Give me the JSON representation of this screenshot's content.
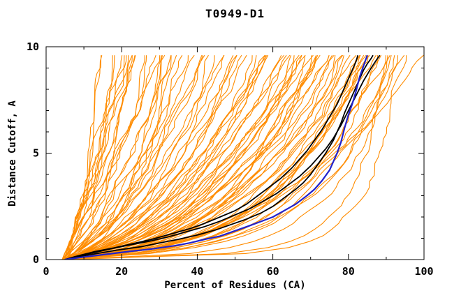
{
  "page": {
    "background": "#ffffff"
  },
  "chart_data": {
    "type": "line",
    "title": "T0949-D1",
    "xlabel": "Percent of Residues (CA)",
    "ylabel": "Distance Cutoff, A",
    "xlim": [
      0,
      100
    ],
    "ylim": [
      0,
      10
    ],
    "x_major_ticks": [
      0,
      20,
      40,
      60,
      80,
      100
    ],
    "x_minor_ticks": [
      10,
      30,
      50,
      70,
      90
    ],
    "y_major_ticks": [
      0,
      5,
      10
    ],
    "y_minor_ticks": [
      1,
      2,
      3,
      4,
      6,
      7,
      8,
      9
    ],
    "grid": false,
    "legend": "none",
    "axis_color": "#000000",
    "colors": {
      "models": "#FF8C00",
      "highlight": "#000000",
      "reference": "#2222CC"
    },
    "y_max_data": 9.6,
    "series": [
      {
        "name": "black-model-1",
        "color": "#000000",
        "width": 1.8,
        "points": [
          [
            5,
            0
          ],
          [
            9,
            0.15
          ],
          [
            14,
            0.3
          ],
          [
            19,
            0.45
          ],
          [
            25,
            0.6
          ],
          [
            30,
            0.78
          ],
          [
            35,
            0.95
          ],
          [
            40,
            1.15
          ],
          [
            45,
            1.4
          ],
          [
            49,
            1.65
          ],
          [
            53,
            1.9
          ],
          [
            57,
            2.2
          ],
          [
            60,
            2.5
          ],
          [
            63,
            2.9
          ],
          [
            66,
            3.3
          ],
          [
            68,
            3.6
          ],
          [
            70,
            4.0
          ],
          [
            72,
            4.5
          ],
          [
            74,
            5.0
          ],
          [
            76,
            5.6
          ],
          [
            77,
            6.0
          ],
          [
            78,
            6.4
          ],
          [
            79,
            6.9
          ],
          [
            80,
            7.3
          ],
          [
            81,
            7.7
          ],
          [
            82,
            8.1
          ],
          [
            83,
            8.5
          ],
          [
            84,
            8.9
          ],
          [
            85,
            9.2
          ],
          [
            86,
            9.45
          ],
          [
            86.5,
            9.6
          ]
        ]
      },
      {
        "name": "black-model-2",
        "color": "#000000",
        "width": 1.8,
        "points": [
          [
            5,
            0
          ],
          [
            8,
            0.15
          ],
          [
            12,
            0.3
          ],
          [
            17,
            0.5
          ],
          [
            22,
            0.68
          ],
          [
            27,
            0.85
          ],
          [
            32,
            1.05
          ],
          [
            37,
            1.3
          ],
          [
            42,
            1.55
          ],
          [
            46,
            1.8
          ],
          [
            50,
            2.1
          ],
          [
            54,
            2.4
          ],
          [
            58,
            2.8
          ],
          [
            61,
            3.1
          ],
          [
            64,
            3.5
          ],
          [
            67,
            3.9
          ],
          [
            70,
            4.4
          ],
          [
            72,
            4.8
          ],
          [
            74,
            5.2
          ],
          [
            76,
            5.7
          ],
          [
            78,
            6.3
          ],
          [
            80,
            7.0
          ],
          [
            82,
            7.7
          ],
          [
            84,
            8.4
          ],
          [
            86,
            9.0
          ],
          [
            87.5,
            9.4
          ],
          [
            88.3,
            9.6
          ]
        ]
      },
      {
        "name": "black-model-3",
        "color": "#000000",
        "width": 1.8,
        "points": [
          [
            5,
            0
          ],
          [
            9,
            0.2
          ],
          [
            13,
            0.38
          ],
          [
            18,
            0.55
          ],
          [
            23,
            0.75
          ],
          [
            28,
            0.95
          ],
          [
            33,
            1.2
          ],
          [
            38,
            1.45
          ],
          [
            42,
            1.7
          ],
          [
            46,
            2.0
          ],
          [
            50,
            2.3
          ],
          [
            53,
            2.6
          ],
          [
            56,
            3.0
          ],
          [
            59,
            3.4
          ],
          [
            62,
            3.8
          ],
          [
            65,
            4.3
          ],
          [
            67,
            4.7
          ],
          [
            69,
            5.1
          ],
          [
            71,
            5.6
          ],
          [
            73,
            6.1
          ],
          [
            75,
            6.7
          ],
          [
            77,
            7.3
          ],
          [
            78,
            7.7
          ],
          [
            79,
            8.1
          ],
          [
            80,
            8.5
          ],
          [
            81,
            8.9
          ],
          [
            82,
            9.3
          ],
          [
            82.5,
            9.6
          ]
        ]
      },
      {
        "name": "blue-reference-model",
        "color": "#2222CC",
        "width": 2.2,
        "points": [
          [
            5,
            0
          ],
          [
            10,
            0.12
          ],
          [
            16,
            0.25
          ],
          [
            22,
            0.38
          ],
          [
            28,
            0.5
          ],
          [
            34,
            0.65
          ],
          [
            38,
            0.78
          ],
          [
            42,
            0.95
          ],
          [
            46,
            1.1
          ],
          [
            50,
            1.35
          ],
          [
            54,
            1.6
          ],
          [
            57,
            1.8
          ],
          [
            60,
            2.0
          ],
          [
            63,
            2.3
          ],
          [
            66,
            2.6
          ],
          [
            69,
            3.0
          ],
          [
            71,
            3.3
          ],
          [
            73,
            3.7
          ],
          [
            75,
            4.2
          ],
          [
            76,
            4.6
          ],
          [
            77,
            5.0
          ],
          [
            78,
            5.5
          ],
          [
            79,
            6.2
          ],
          [
            80,
            6.8
          ],
          [
            81,
            7.3
          ],
          [
            82,
            7.9
          ],
          [
            83,
            8.6
          ],
          [
            84,
            9.1
          ],
          [
            85,
            9.6
          ]
        ]
      }
    ],
    "model_ensemble": {
      "name": "orange-models",
      "color": "#FF8C00",
      "width": 1.1,
      "start_percent_range": [
        4.2,
        5.8
      ],
      "curve_params_legend": [
        "end_percent",
        "shape_exponent",
        "jitter_seed"
      ],
      "curves": [
        [
          17,
          0.8,
          1
        ],
        [
          18,
          0.72,
          2
        ],
        [
          19,
          0.78,
          3
        ],
        [
          20,
          0.7,
          4
        ],
        [
          21,
          0.75,
          5
        ],
        [
          22,
          0.68,
          6
        ],
        [
          23,
          0.74,
          7
        ],
        [
          24,
          0.66,
          8
        ],
        [
          18.5,
          0.82,
          9
        ],
        [
          20.5,
          0.77,
          10
        ],
        [
          16.5,
          0.7,
          11
        ],
        [
          25,
          0.72,
          12
        ],
        [
          26,
          0.6,
          13
        ],
        [
          28,
          0.66,
          14
        ],
        [
          30,
          0.58,
          15
        ],
        [
          31,
          0.64,
          16
        ],
        [
          33,
          0.56,
          17
        ],
        [
          34,
          0.62,
          18
        ],
        [
          36,
          0.55,
          19
        ],
        [
          37,
          0.6,
          20
        ],
        [
          38,
          0.52,
          21
        ],
        [
          39,
          0.58,
          22
        ],
        [
          27,
          0.7,
          23
        ],
        [
          32,
          0.63,
          24
        ],
        [
          35,
          0.57,
          25
        ],
        [
          40,
          0.54,
          26
        ],
        [
          41,
          0.5,
          27
        ],
        [
          43,
          0.55,
          28
        ],
        [
          45,
          0.48,
          29
        ],
        [
          46,
          0.52,
          30
        ],
        [
          48,
          0.45,
          31
        ],
        [
          49,
          0.5,
          32
        ],
        [
          50,
          0.47,
          33
        ],
        [
          52,
          0.53,
          34
        ],
        [
          53,
          0.44,
          35
        ],
        [
          55,
          0.5,
          36
        ],
        [
          56,
          0.42,
          37
        ],
        [
          57,
          0.48,
          38
        ],
        [
          58,
          0.45,
          39
        ],
        [
          60,
          0.5,
          40
        ],
        [
          61,
          0.4,
          41
        ],
        [
          62,
          0.46,
          42
        ],
        [
          63,
          0.42,
          43
        ],
        [
          64,
          0.48,
          44
        ],
        [
          44,
          0.58,
          45
        ],
        [
          51,
          0.55,
          46
        ],
        [
          59,
          0.52,
          47
        ],
        [
          65,
          0.44,
          48
        ],
        [
          66,
          0.38,
          49
        ],
        [
          67,
          0.42,
          50
        ],
        [
          68,
          0.35,
          51
        ],
        [
          69,
          0.4,
          52
        ],
        [
          70,
          0.36,
          53
        ],
        [
          71,
          0.42,
          54
        ],
        [
          72,
          0.33,
          55
        ],
        [
          73,
          0.38,
          56
        ],
        [
          74,
          0.35,
          57
        ],
        [
          75,
          0.4,
          58
        ],
        [
          76,
          0.32,
          59
        ],
        [
          77,
          0.36,
          60
        ],
        [
          78,
          0.3,
          61
        ],
        [
          79,
          0.34,
          62
        ],
        [
          80,
          0.32,
          63
        ],
        [
          66.5,
          0.45,
          64
        ],
        [
          70.5,
          0.44,
          65
        ],
        [
          74.5,
          0.42,
          66
        ],
        [
          77.5,
          0.38,
          67
        ],
        [
          79.5,
          0.36,
          68
        ],
        [
          72.5,
          0.45,
          69
        ],
        [
          68.5,
          0.47,
          70
        ],
        [
          81,
          0.28,
          71
        ],
        [
          82,
          0.3,
          72
        ],
        [
          83,
          0.26,
          73
        ],
        [
          84,
          0.28,
          74
        ],
        [
          85,
          0.24,
          75
        ],
        [
          86,
          0.27,
          76
        ],
        [
          87,
          0.22,
          77
        ],
        [
          88,
          0.25,
          78
        ],
        [
          89,
          0.2,
          79
        ],
        [
          90,
          0.24,
          80
        ],
        [
          91,
          0.18,
          81
        ],
        [
          92,
          0.22,
          82
        ],
        [
          93,
          0.08,
          83
        ],
        [
          85.5,
          0.3,
          84
        ],
        [
          87.5,
          0.28,
          85
        ],
        [
          83.5,
          0.32,
          86
        ],
        [
          89.5,
          0.26,
          87
        ],
        [
          94,
          0.2,
          88
        ],
        [
          90,
          0.1,
          90
        ],
        [
          98,
          0.38,
          89
        ]
      ]
    }
  }
}
